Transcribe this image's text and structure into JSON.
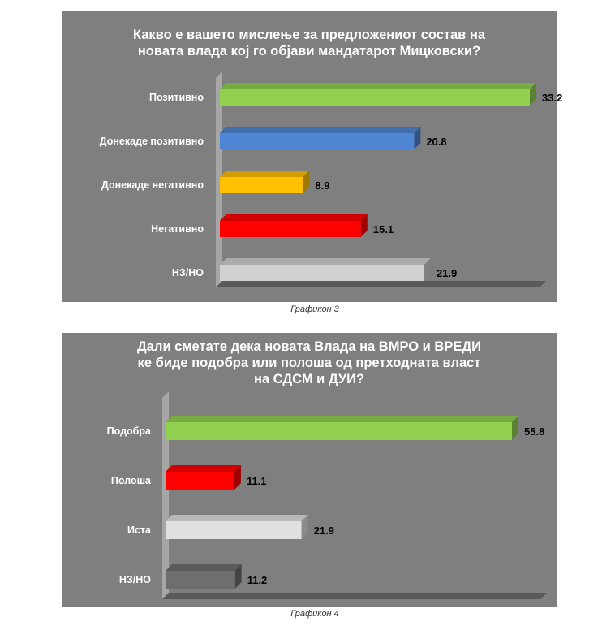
{
  "chart_data": [
    {
      "type": "bar",
      "orientation": "horizontal",
      "title_lines": [
        "Какво е вашето мислење за предложениот состав на",
        "новата влада кој го објави мандатарот Мицковски?"
      ],
      "categories": [
        "Позитивно",
        "Донекаде позитивно",
        "Донекаде негативно",
        "Негативно",
        "НЗ/НО"
      ],
      "values": [
        33.2,
        20.8,
        8.9,
        15.1,
        21.9
      ],
      "value_labels": [
        "33.2",
        "20.8",
        "8.9",
        "15.1",
        "21.9"
      ],
      "colors": [
        "#92D050",
        "#4F86D3",
        "#FFC000",
        "#FF0000",
        "#D0D0D0"
      ],
      "xlim": [
        0,
        33.2
      ],
      "caption": "Графикон 3",
      "grid": false,
      "legend": "none"
    },
    {
      "type": "bar",
      "orientation": "horizontal",
      "title_lines": [
        "Дали сметате дека новата Влада на ВМРО и ВРЕДИ",
        "ке биде подобра или полоша од претходната власт",
        "на СДСМ и ДУИ?"
      ],
      "categories": [
        "Подобра",
        "Полоша",
        "Иста",
        "НЗ/НО"
      ],
      "values": [
        55.8,
        11.1,
        21.9,
        11.2
      ],
      "value_labels": [
        "55.8",
        "11.1",
        "21.9",
        "11.2"
      ],
      "colors": [
        "#92D050",
        "#FF0000",
        "#E0E0E0",
        "#6E6E6E"
      ],
      "xlim": [
        0,
        55.8
      ],
      "caption": "Графикон 4",
      "grid": false,
      "legend": "none"
    }
  ]
}
